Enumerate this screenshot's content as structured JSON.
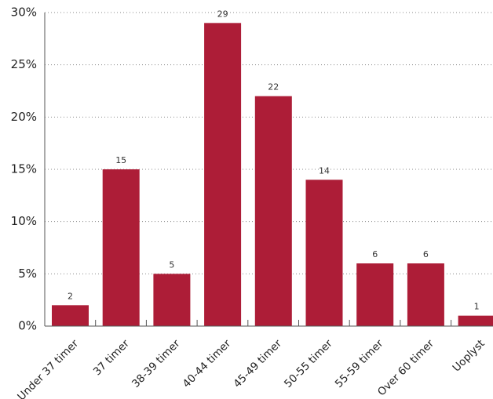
{
  "chart_data": {
    "type": "bar",
    "categories": [
      "Under 37 timer",
      "37 timer",
      "38-39 timer",
      "40-44 timer",
      "45-49 timer",
      "50-55 timer",
      "55-59 timer",
      "Over 60 timer",
      "Uoplyst"
    ],
    "values": [
      2,
      15,
      5,
      29,
      22,
      14,
      6,
      6,
      1
    ],
    "data_labels": [
      "2",
      "15",
      "5",
      "29",
      "22",
      "14",
      "6",
      "6",
      "1"
    ],
    "yticks": [
      0,
      5,
      10,
      15,
      20,
      25,
      30
    ],
    "ytick_labels": [
      "0%",
      "5%",
      "10%",
      "15%",
      "20%",
      "25%",
      "30%"
    ],
    "ylim": [
      0,
      30
    ],
    "title": "",
    "xlabel": "",
    "ylabel": "",
    "grid": "horizontal dotted",
    "bar_color": "#ad1d37",
    "grid_color": "#8a8a8a",
    "axis_color": "#555555"
  }
}
